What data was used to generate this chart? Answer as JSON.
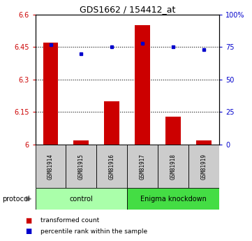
{
  "title": "GDS1662 / 154412_at",
  "samples": [
    "GSM81914",
    "GSM81915",
    "GSM81916",
    "GSM81917",
    "GSM81918",
    "GSM81919"
  ],
  "bar_values": [
    6.47,
    6.02,
    6.2,
    6.55,
    6.13,
    6.02
  ],
  "bar_bottom": 6.0,
  "bar_color": "#cc0000",
  "dot_values": [
    77,
    70,
    75,
    78,
    75,
    73
  ],
  "dot_color": "#0000cc",
  "ylim_left": [
    6.0,
    6.6
  ],
  "ylim_right": [
    0,
    100
  ],
  "yticks_left": [
    6.0,
    6.15,
    6.3,
    6.45,
    6.6
  ],
  "ytick_labels_left": [
    "6",
    "6.15",
    "6.3",
    "6.45",
    "6.6"
  ],
  "yticks_right": [
    0,
    25,
    50,
    75,
    100
  ],
  "ytick_labels_right": [
    "0",
    "25",
    "50",
    "75",
    "100%"
  ],
  "hlines": [
    6.15,
    6.3,
    6.45
  ],
  "groups": [
    {
      "label": "control",
      "start": 0,
      "end": 3,
      "color": "#aaffaa"
    },
    {
      "label": "Enigma knockdown",
      "start": 3,
      "end": 6,
      "color": "#44dd44"
    }
  ],
  "protocol_label": "protocol",
  "legend_bar_label": "transformed count",
  "legend_dot_label": "percentile rank within the sample",
  "sample_bg_color": "#cccccc",
  "plot_bg": "#ffffff",
  "bar_width": 0.5
}
